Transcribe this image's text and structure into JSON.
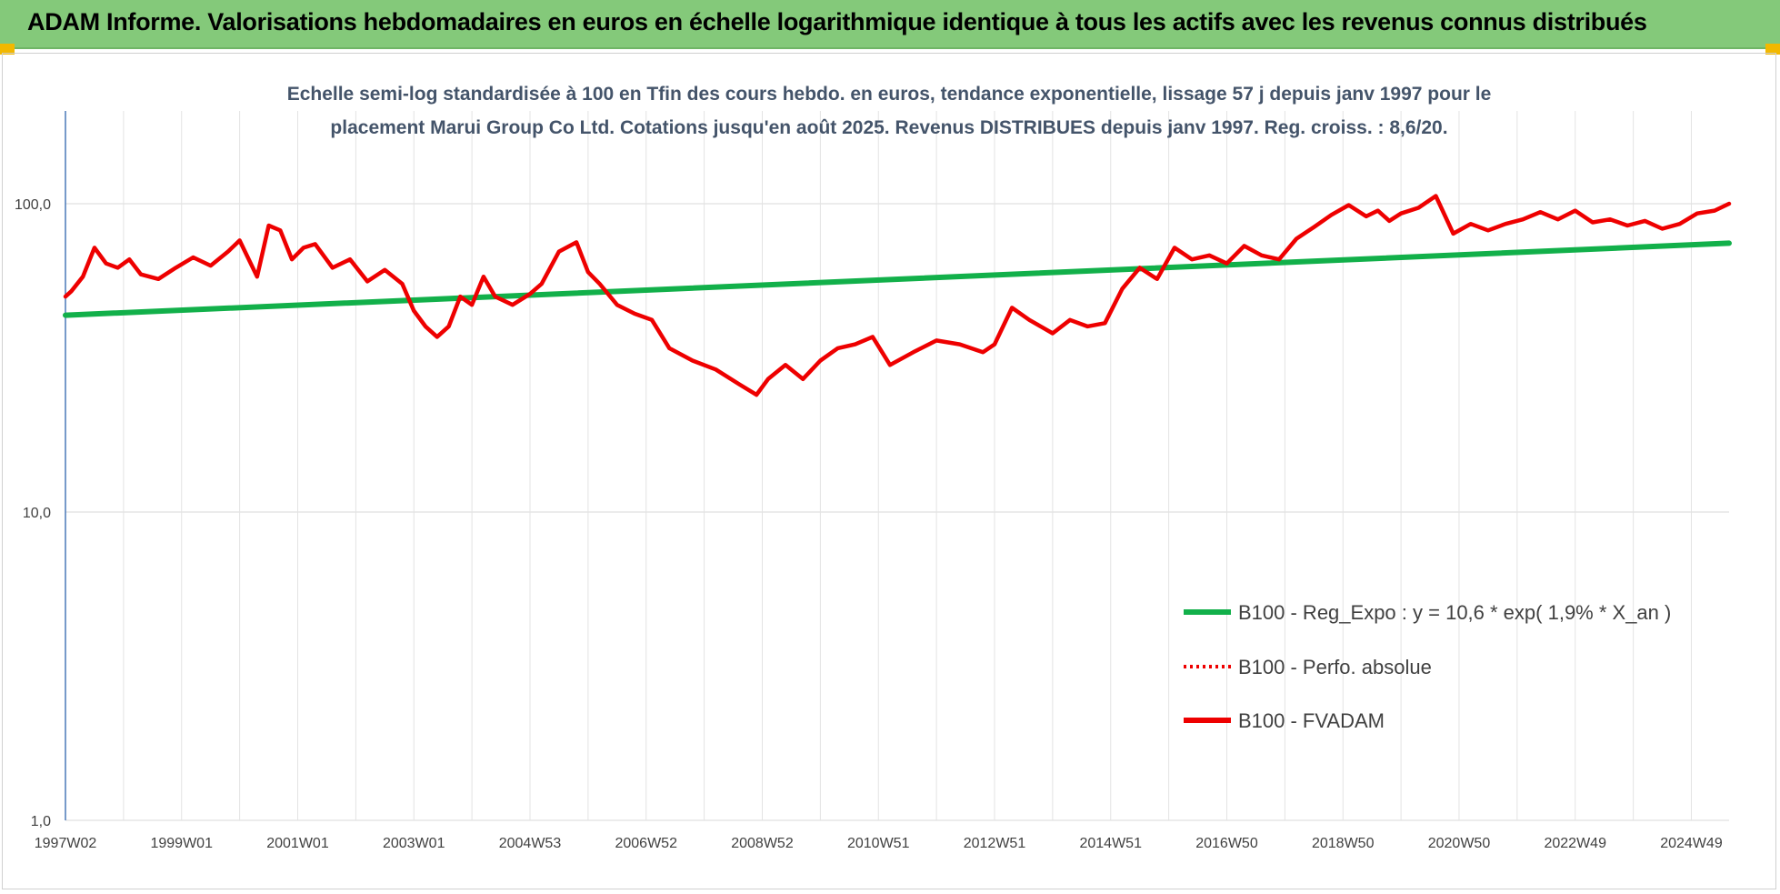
{
  "banner": {
    "title": "ADAM Informe. Valorisations hebdomadaires en euros en échelle logarithmique identique à tous les actifs avec les revenus connus distribués"
  },
  "colors": {
    "banner_bg": "#84c97a",
    "corner_accent": "#f2b800",
    "trend": "#12b04a",
    "fvadam": "#ee0000",
    "perfo": "#ee0000"
  },
  "chart_data": {
    "type": "line",
    "title_lines": [
      "Echelle semi-log standardisée à 100 en Tfin des cours hebdo. en euros, tendance exponentielle, lissage 57 j depuis janv 1997 pour le",
      "placement Marui Group Co Ltd. Cotations jusqu'en août 2025. Revenus DISTRIBUES depuis janv 1997. Reg. croiss. : 8,6/20."
    ],
    "y_scale": "log",
    "ylim": [
      1,
      200
    ],
    "y_ticks": [
      {
        "value": 1,
        "label": "1,0"
      },
      {
        "value": 10,
        "label": "10,0"
      },
      {
        "value": 100,
        "label": "100,0"
      }
    ],
    "xlim": [
      1997.0,
      2025.65
    ],
    "x_ticks": [
      {
        "x": 1997.0,
        "label": "1997W02"
      },
      {
        "x": 1999.0,
        "label": "1999W01"
      },
      {
        "x": 2001.0,
        "label": "2001W01"
      },
      {
        "x": 2003.0,
        "label": "2003W01"
      },
      {
        "x": 2005.0,
        "label": "2004W53"
      },
      {
        "x": 2007.0,
        "label": "2006W52"
      },
      {
        "x": 2009.0,
        "label": "2008W52"
      },
      {
        "x": 2011.0,
        "label": "2010W51"
      },
      {
        "x": 2013.0,
        "label": "2012W51"
      },
      {
        "x": 2015.0,
        "label": "2014W51"
      },
      {
        "x": 2017.0,
        "label": "2016W50"
      },
      {
        "x": 2019.0,
        "label": "2018W50"
      },
      {
        "x": 2021.0,
        "label": "2020W50"
      },
      {
        "x": 2023.0,
        "label": "2022W49"
      },
      {
        "x": 2025.0,
        "label": "2024W49"
      }
    ],
    "grid": true,
    "legend_position": "bottom-right",
    "legend": [
      {
        "name": "B100 - Reg_Expo : y = 10,6 * exp( 1,9% *  X_an )",
        "color": "#12b04a",
        "style": "solid"
      },
      {
        "name": "B100 - Perfo. absolue",
        "color": "#ee0000",
        "style": "dotted"
      },
      {
        "name": "B100 - FVADAM",
        "color": "#ee0000",
        "style": "solid"
      }
    ],
    "series": [
      {
        "name": "B100 - Reg_Expo : y = 10,6 * exp( 1,9% *  X_an )",
        "color": "#12b04a",
        "x": [
          1997.0,
          2025.65
        ],
        "values": [
          43.5,
          74.5
        ]
      },
      {
        "name": "B100 - FVADAM",
        "color": "#ee0000",
        "x": [
          1997.0,
          1997.1,
          1997.3,
          1997.5,
          1997.7,
          1997.9,
          1998.1,
          1998.3,
          1998.6,
          1998.9,
          1999.2,
          1999.5,
          1999.8,
          2000.0,
          2000.3,
          2000.5,
          2000.7,
          2000.9,
          2001.1,
          2001.3,
          2001.6,
          2001.9,
          2002.2,
          2002.5,
          2002.8,
          2003.0,
          2003.2,
          2003.4,
          2003.6,
          2003.8,
          2004.0,
          2004.2,
          2004.4,
          2004.7,
          2005.0,
          2005.2,
          2005.5,
          2005.8,
          2006.0,
          2006.2,
          2006.5,
          2006.8,
          2007.1,
          2007.4,
          2007.8,
          2008.2,
          2008.6,
          2008.9,
          2009.1,
          2009.4,
          2009.7,
          2010.0,
          2010.3,
          2010.6,
          2010.9,
          2011.2,
          2011.6,
          2012.0,
          2012.4,
          2012.8,
          2013.0,
          2013.3,
          2013.6,
          2014.0,
          2014.3,
          2014.6,
          2014.9,
          2015.2,
          2015.5,
          2015.8,
          2016.1,
          2016.4,
          2016.7,
          2017.0,
          2017.3,
          2017.6,
          2017.9,
          2018.2,
          2018.5,
          2018.8,
          2019.1,
          2019.4,
          2019.6,
          2019.8,
          2020.0,
          2020.3,
          2020.6,
          2020.9,
          2021.2,
          2021.5,
          2021.8,
          2022.1,
          2022.4,
          2022.7,
          2023.0,
          2023.3,
          2023.6,
          2023.9,
          2024.2,
          2024.5,
          2024.8,
          2025.1,
          2025.4,
          2025.65
        ],
        "values": [
          50,
          52,
          58,
          72,
          64,
          62,
          66,
          59,
          57,
          62,
          67,
          63,
          70,
          76,
          58,
          85,
          82,
          66,
          72,
          74,
          62,
          66,
          56,
          61,
          55,
          45,
          40,
          37,
          40,
          50,
          47,
          58,
          50,
          47,
          51,
          55,
          70,
          75,
          60,
          55,
          47,
          44,
          42,
          34,
          31,
          29,
          26,
          24,
          27,
          30,
          27,
          31,
          34,
          35,
          37,
          30,
          33,
          36,
          35,
          33,
          35,
          46,
          42,
          38,
          42,
          40,
          41,
          53,
          62,
          57,
          72,
          66,
          68,
          64,
          73,
          68,
          66,
          77,
          84,
          92,
          99,
          91,
          95,
          88,
          93,
          97,
          106,
          80,
          86,
          82,
          86,
          89,
          94,
          89,
          95,
          87,
          89,
          85,
          88,
          83,
          86,
          93,
          95,
          100
        ]
      }
    ]
  }
}
